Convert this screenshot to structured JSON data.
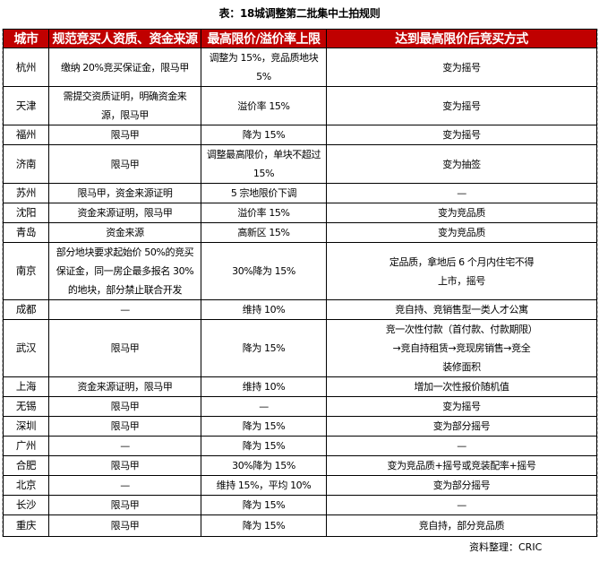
{
  "title": "表：18城调整第二批集中土拍规则",
  "headers": [
    "城市",
    "规范竞买人资质、资金来源",
    "最高限价/溢价率上限",
    "达到最高限价后竞买方式"
  ],
  "rows": [
    [
      "杭州",
      "缴纳 20%竞买保证金，限马甲",
      "调整为 15%，竞品质地块 5%",
      "变为摇号"
    ],
    [
      "天津",
      "需提交资质证明，明确资金来\n源，限马甲",
      "溢价率 15%",
      "变为摇号"
    ],
    [
      "福州",
      "限马甲",
      "降为 15%",
      "变为摇号"
    ],
    [
      "济南",
      "限马甲",
      "调整最高限价，单块不超过\n15%",
      "变为抽签"
    ],
    [
      "苏州",
      "限马甲，资金来源证明",
      "5 宗地限价下调",
      "—"
    ],
    [
      "沈阳",
      "资金来源证明，限马甲",
      "溢价率 15%",
      "变为竞品质"
    ],
    [
      "青岛",
      "资金来源",
      "高新区 15%",
      "变为竞品质"
    ],
    [
      "南京",
      "部分地块要求起始价 50%的竞买\n保证金，同一房企最多报名 30%\n的地块，部分禁止联合开发",
      "30%降为 15%",
      "定品质，拿地后 6 个月内住宅不得\n上市，摇号"
    ],
    [
      "成都",
      "—",
      "维持 10%",
      "竞自持、竞销售型一类人才公寓"
    ],
    [
      "武汉",
      "限马甲",
      "降为 15%",
      "竞一次性付款（首付款、付款期限）\n→竞自持租赁→竞现房销售→竞全\n装修面积"
    ],
    [
      "上海",
      "资金来源证明，限马甲",
      "维持 10%",
      "增加一次性报价随机值"
    ],
    [
      "无锡",
      "限马甲",
      "—",
      "变为摇号"
    ],
    [
      "深圳",
      "限马甲",
      "降为 15%",
      "变为部分摇号"
    ],
    [
      "广州",
      "—",
      "降为 15%",
      "—"
    ],
    [
      "合肥",
      "限马甲",
      "30%降为 15%",
      "变为竞品质+摇号或竞装配率+摇号"
    ],
    [
      "北京",
      "—",
      "维持 15%，平均 10%",
      "变为部分摇号"
    ],
    [
      "长沙",
      "限马甲",
      "降为 15%",
      "—"
    ],
    [
      "重庆",
      "限马甲",
      "降为 15%",
      "竞自持，部分竞品质"
    ]
  ],
  "source": "资料整理：CRIC",
  "colors": {
    "header_bg": "#c00000",
    "header_text": "#ffffff"
  }
}
